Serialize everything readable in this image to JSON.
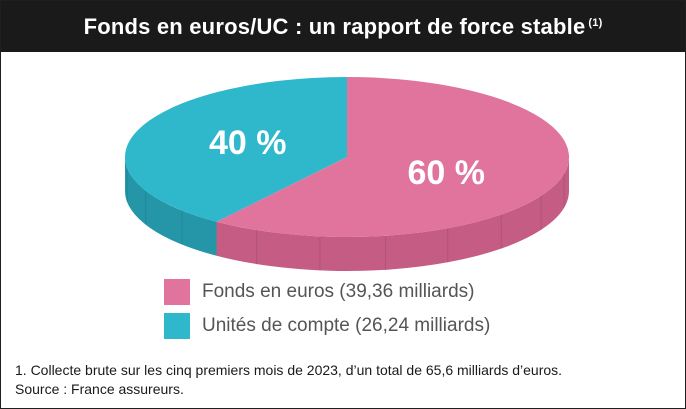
{
  "title": "Fonds en euros/UC : un rapport de force stable",
  "title_note": "(1)",
  "chart_data": {
    "type": "pie",
    "title": "Fonds en euros/UC : un rapport de force stable",
    "slices": [
      {
        "name": "Fonds en euros (39,36 milliards)",
        "label": "60 %",
        "value": 60,
        "amount": 39.36,
        "color": "#e0749d",
        "side_color": "#c45c84"
      },
      {
        "name": "Unités de compte (26,24 milliards)",
        "label": "40 %",
        "value": 40,
        "amount": 26.24,
        "color": "#2fb7cc",
        "side_color": "#2496a8"
      }
    ],
    "legend_position": "bottom-center"
  },
  "footnote": {
    "line1": "1. Collecte brute sur les cinq premiers mois de 2023, d’un total de 65,6 milliards d’euros.",
    "line2": "Source : France assureurs."
  }
}
